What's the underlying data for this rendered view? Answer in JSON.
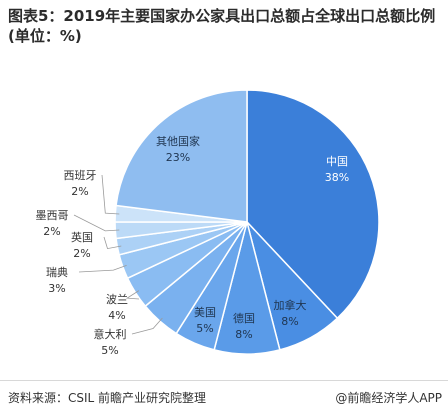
{
  "title": "图表5：2019年主要国家办公家具出口总额占全球出口总额比例(单位：%)",
  "source": "资料来源：CSIL 前瞻产业研究院整理",
  "brand": "@前瞻经济学人APP",
  "chart_data": {
    "type": "pie",
    "title": "图表5：2019年主要国家办公家具出口总额占全球出口总额比例(单位：%)",
    "unit": "%",
    "slices": [
      {
        "label": "中国",
        "value": 38,
        "value_label": "38%",
        "color": "#3b7fd9"
      },
      {
        "label": "加拿大",
        "value": 8,
        "value_label": "8%",
        "color": "#4a8ee3"
      },
      {
        "label": "德国",
        "value": 8,
        "value_label": "8%",
        "color": "#5a9be8"
      },
      {
        "label": "美国",
        "value": 5,
        "value_label": "5%",
        "color": "#6aa6ec"
      },
      {
        "label": "意大利",
        "value": 5,
        "value_label": "5%",
        "color": "#7ab1ef"
      },
      {
        "label": "波兰",
        "value": 4,
        "value_label": "4%",
        "color": "#8abcf2"
      },
      {
        "label": "瑞典",
        "value": 3,
        "value_label": "3%",
        "color": "#9bc7f4"
      },
      {
        "label": "英国",
        "value": 2,
        "value_label": "2%",
        "color": "#acd1f6"
      },
      {
        "label": "墨西哥",
        "value": 2,
        "value_label": "2%",
        "color": "#bcdaf7"
      },
      {
        "label": "西班牙",
        "value": 2,
        "value_label": "2%",
        "color": "#cce3f9"
      },
      {
        "label": "其他国家",
        "value": 23,
        "value_label": "23%",
        "color": "#8fbdf0"
      }
    ]
  }
}
